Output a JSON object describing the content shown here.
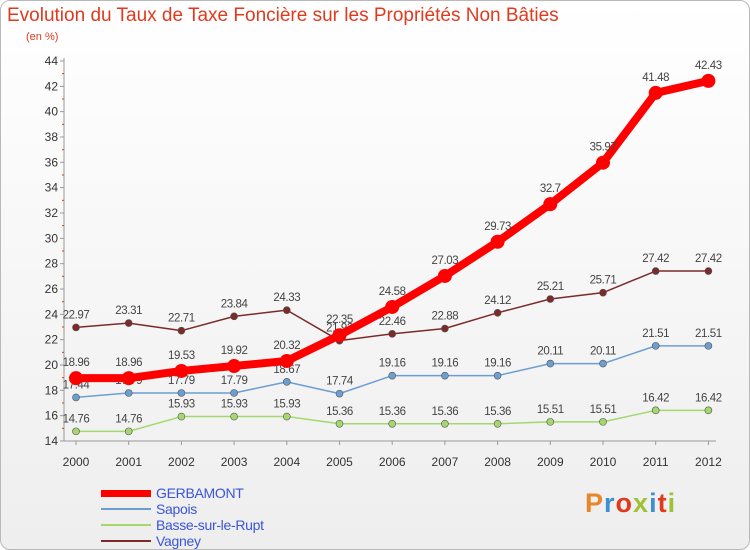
{
  "header": {
    "title": "Evolution du Taux de Taxe Foncière sur les Propriétés Non Bâties",
    "subtitle": "(en %)"
  },
  "logo": {
    "text": "Proxiti",
    "colors": [
      "#e8862a",
      "#3d8fd0",
      "#e03a1e",
      "#9ec234",
      "#3d8fd0",
      "#e03a1e",
      "#9ec234"
    ]
  },
  "chart_data": {
    "type": "line",
    "title": "Evolution du Taux de Taxe Foncière sur les Propriétés Non Bâties",
    "subtitle": "(en %)",
    "xlabel": "",
    "ylabel": "",
    "x": [
      "2000",
      "2001",
      "2002",
      "2003",
      "2004",
      "2005",
      "2006",
      "2007",
      "2008",
      "2009",
      "2010",
      "2011",
      "2012"
    ],
    "ylim": [
      14,
      44
    ],
    "yticks": [
      14,
      16,
      18,
      20,
      22,
      24,
      26,
      28,
      30,
      32,
      34,
      36,
      38,
      40,
      42,
      44
    ],
    "grid": false,
    "legend": "bottom-left",
    "series": [
      {
        "name": "GERBAMONT",
        "color": "#ff0000",
        "values": [
          18.96,
          18.96,
          19.53,
          19.92,
          20.32,
          22.35,
          24.58,
          27.03,
          29.73,
          32.7,
          35.97,
          41.48,
          42.43
        ],
        "labels": [
          "18.96",
          "18.96",
          "19.53",
          "19.92",
          "20.32",
          "22.35",
          "24.58",
          "27.03",
          "29.73",
          "32.7",
          "35.97",
          "41.48",
          "42.43"
        ]
      },
      {
        "name": "Sapois",
        "color": "#6d9ed0",
        "values": [
          17.44,
          17.79,
          17.79,
          17.79,
          18.67,
          17.74,
          19.16,
          19.16,
          19.16,
          20.11,
          20.11,
          21.51,
          21.51
        ],
        "labels": [
          "17.44",
          "17.79",
          "17.79",
          "17.79",
          "18.67",
          "17.74",
          "19.16",
          "19.16",
          "19.16",
          "20.11",
          "20.11",
          "21.51",
          "21.51"
        ]
      },
      {
        "name": "Basse-sur-le-Rupt",
        "color": "#a4d86e",
        "values": [
          14.76,
          14.76,
          15.93,
          15.93,
          15.93,
          15.36,
          15.36,
          15.36,
          15.36,
          15.51,
          15.51,
          16.42,
          16.42
        ],
        "labels": [
          "14.76",
          "14.76",
          "15.93",
          "15.93",
          "15.93",
          "15.36",
          "15.36",
          "15.36",
          "15.36",
          "15.51",
          "15.51",
          "16.42",
          "16.42"
        ]
      },
      {
        "name": "Vagney",
        "color": "#7c2a2a",
        "values": [
          22.97,
          23.31,
          22.71,
          23.84,
          24.33,
          21.92,
          22.46,
          22.88,
          24.12,
          25.21,
          25.71,
          27.42,
          27.42
        ],
        "labels": [
          "22.97",
          "23.31",
          "22.71",
          "23.84",
          "24.33",
          "21.92",
          "22.46",
          "22.88",
          "24.12",
          "25.21",
          "25.71",
          "27.42",
          "27.42"
        ]
      }
    ]
  }
}
